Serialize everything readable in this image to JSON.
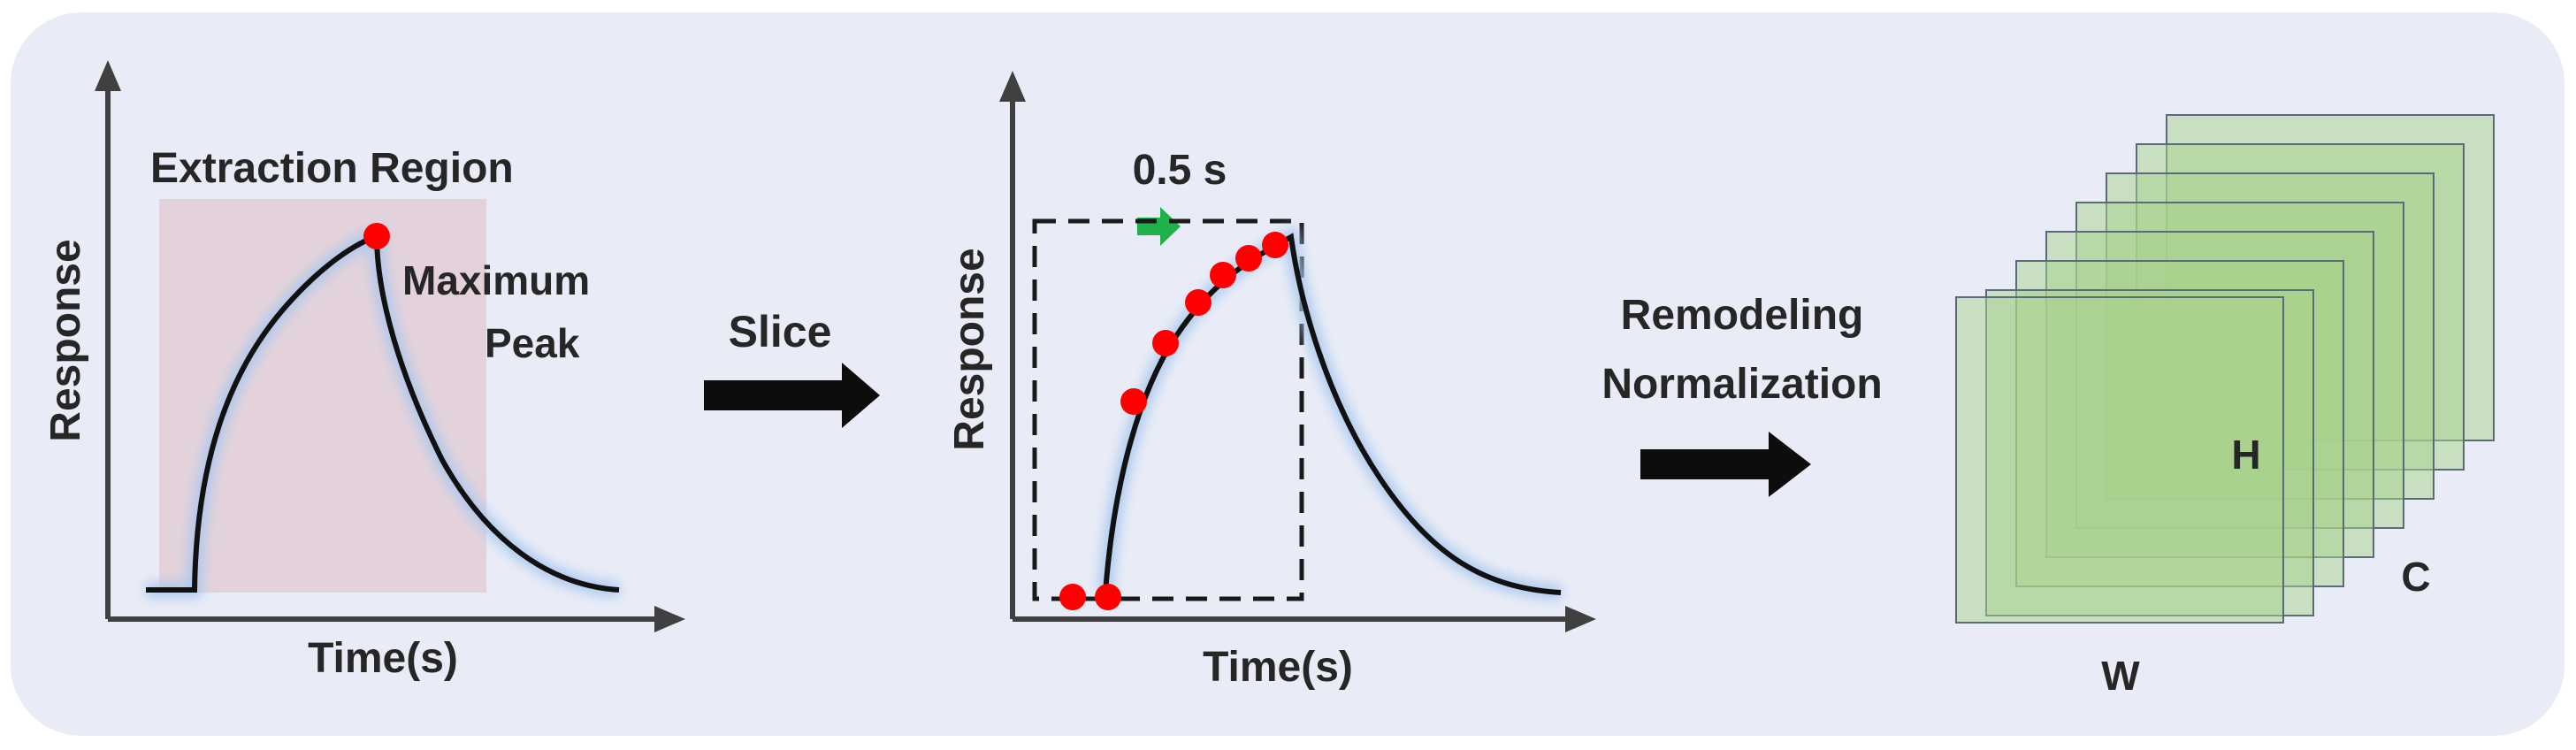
{
  "panel1": {
    "region_title": "Extraction Region",
    "y_label": "Response",
    "x_label": "Time(s)",
    "peak_label_line1": "Maximum",
    "peak_label_line2": "Peak"
  },
  "arrow1": {
    "label": "Slice"
  },
  "panel2": {
    "interval_label": "0.5 s",
    "y_label": "Response",
    "x_label": "Time(s)"
  },
  "arrow2": {
    "label_line1": "Remodeling",
    "label_line2": "Normalization"
  },
  "tensor": {
    "dim_h": "H",
    "dim_c": "C",
    "dim_w": "W"
  },
  "colors": {
    "panel_background": "#e9ecf6",
    "extraction_region": "#e3d2db",
    "sample_points": "#ff0000",
    "step_arrow": "#1fb24a",
    "tensor_layer": "#a9d18e"
  }
}
